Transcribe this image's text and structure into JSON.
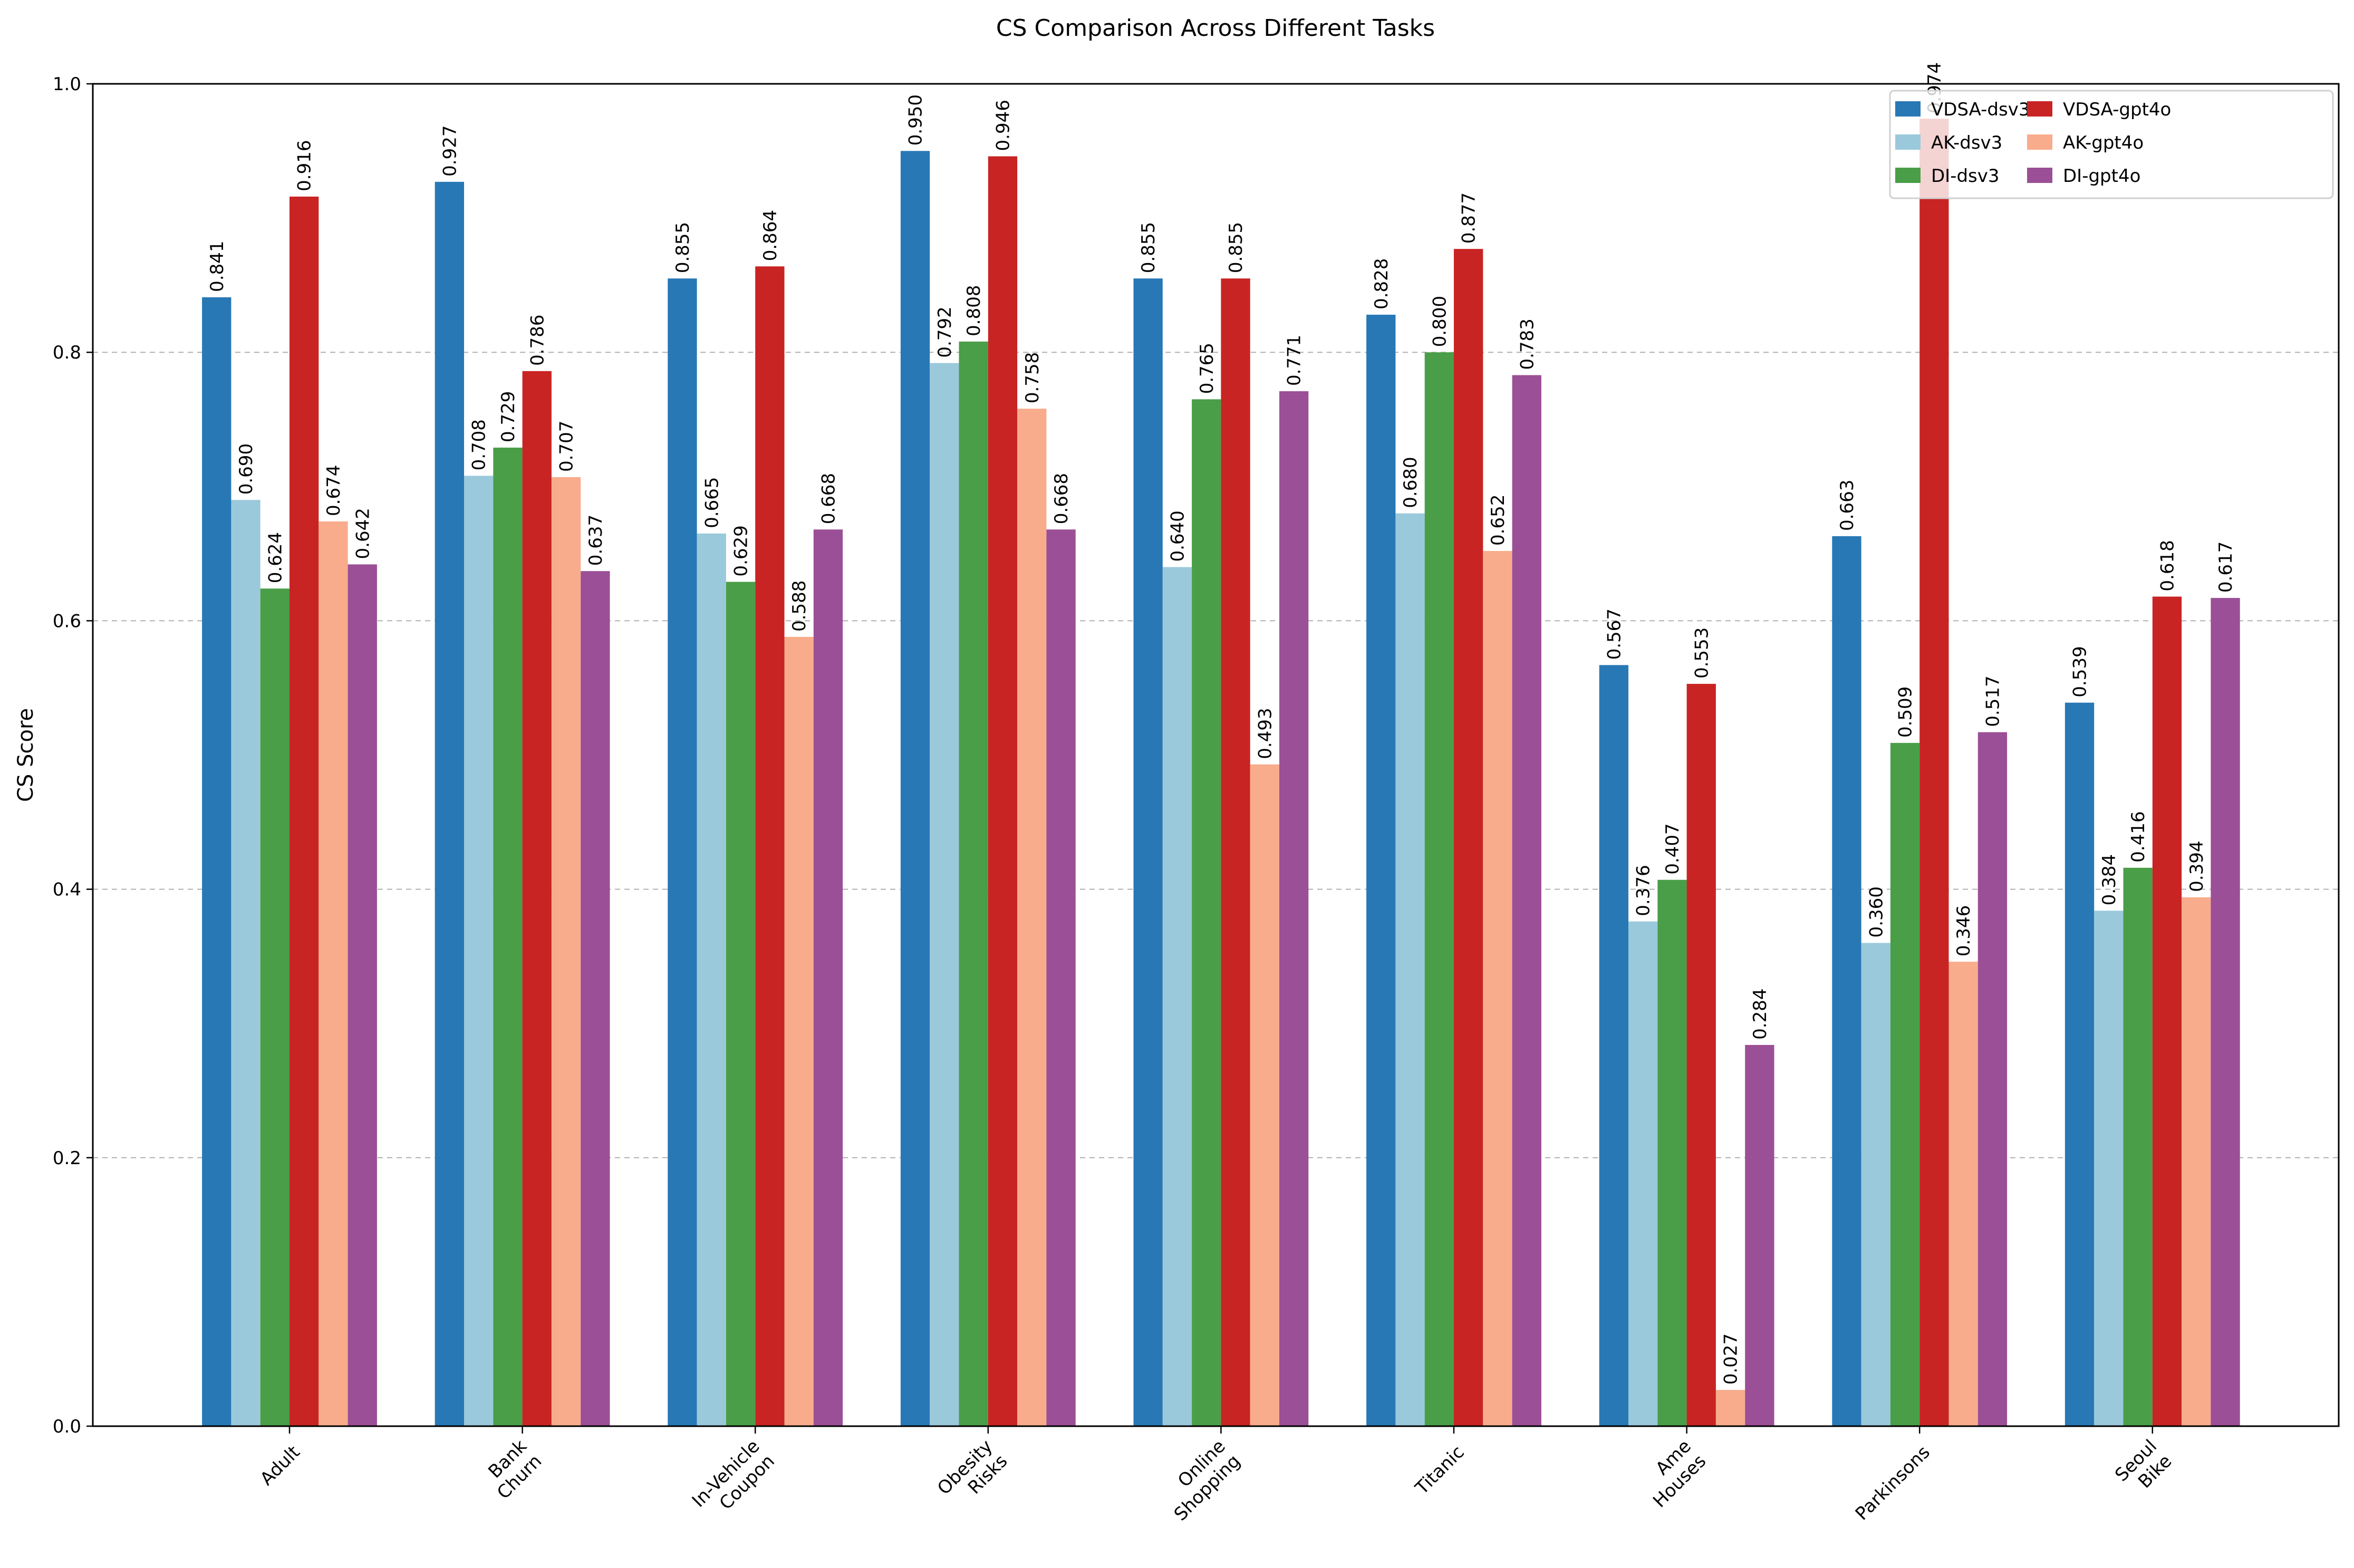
{
  "chart_data": {
    "type": "bar",
    "title": "CS Comparison Across Different Tasks",
    "xlabel": "",
    "ylabel": "CS Score",
    "ylim": [
      0,
      1.0
    ],
    "yticks": [
      "0.0",
      "0.2",
      "0.4",
      "0.6",
      "0.8",
      "1.0"
    ],
    "grid": "y dashed",
    "legend_position": "top-right",
    "categories": [
      [
        "Adult"
      ],
      [
        "Bank",
        "Churn"
      ],
      [
        "In-Vehicle",
        "Coupon"
      ],
      [
        "Obesity",
        "Risks"
      ],
      [
        "Online",
        "Shopping"
      ],
      [
        "Titanic"
      ],
      [
        "Ame",
        "Houses"
      ],
      [
        "Parkinsons"
      ],
      [
        "Seoul",
        "Bike"
      ]
    ],
    "series": [
      {
        "name": "VDSA-dsv3",
        "color": "#2878b5",
        "values": [
          0.841,
          0.927,
          0.855,
          0.95,
          0.855,
          0.828,
          0.567,
          0.663,
          0.539
        ]
      },
      {
        "name": "AK-dsv3",
        "color": "#9ac9db",
        "values": [
          0.69,
          0.708,
          0.665,
          0.792,
          0.64,
          0.68,
          0.376,
          0.36,
          0.384
        ]
      },
      {
        "name": "DI-dsv3",
        "color": "#4a9e48",
        "values": [
          0.624,
          0.729,
          0.629,
          0.808,
          0.765,
          0.8,
          0.407,
          0.509,
          0.416
        ]
      },
      {
        "name": "VDSA-gpt4o",
        "color": "#c82423",
        "values": [
          0.916,
          0.786,
          0.864,
          0.946,
          0.855,
          0.877,
          0.553,
          0.974,
          0.618
        ]
      },
      {
        "name": "AK-gpt4o",
        "color": "#f8ac8c",
        "values": [
          0.674,
          0.707,
          0.588,
          0.758,
          0.493,
          0.652,
          0.027,
          0.346,
          0.394
        ]
      },
      {
        "name": "DI-gpt4o",
        "color": "#9b4f96",
        "values": [
          0.642,
          0.637,
          0.668,
          0.668,
          0.771,
          0.783,
          0.284,
          0.517,
          0.617
        ]
      }
    ]
  }
}
